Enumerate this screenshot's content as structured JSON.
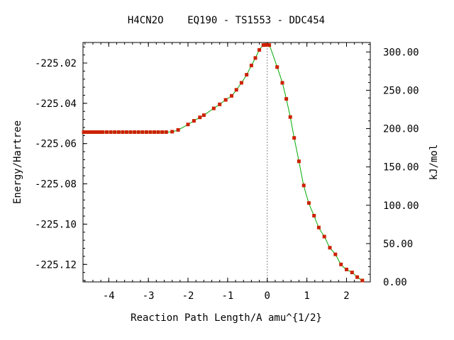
{
  "chart_data": {
    "type": "line",
    "title": "H4CN2O    EQ190 - TS1553 - DDC454",
    "xlabel": "Reaction Path Length/A amu^{1/2}",
    "ylabel": "Energy/Hartree",
    "y2label": "kJ/mol",
    "xlim": [
      -4.65,
      2.6
    ],
    "ylim": [
      -225.1287,
      -225.0098
    ],
    "y2lim": [
      0.0,
      312.3
    ],
    "grid": false,
    "legend": "none",
    "ts_marker_x": 0.0,
    "x_ticks": [
      {
        "value": -4,
        "label": "-4"
      },
      {
        "value": -3,
        "label": "-3"
      },
      {
        "value": -2,
        "label": "-2"
      },
      {
        "value": -1,
        "label": "-1"
      },
      {
        "value": 0,
        "label": "0"
      },
      {
        "value": 1,
        "label": "1"
      },
      {
        "value": 2,
        "label": "2"
      }
    ],
    "y_ticks": [
      {
        "value": -225.02,
        "label": "-225.02"
      },
      {
        "value": -225.04,
        "label": "-225.04"
      },
      {
        "value": -225.06,
        "label": "-225.06"
      },
      {
        "value": -225.08,
        "label": "-225.08"
      },
      {
        "value": -225.1,
        "label": "-225.10"
      },
      {
        "value": -225.12,
        "label": "-225.12"
      }
    ],
    "y2_ticks": [
      {
        "value": 0,
        "label": "0.00"
      },
      {
        "value": 50,
        "label": "50.00"
      },
      {
        "value": 100,
        "label": "100.00"
      },
      {
        "value": 150,
        "label": "150.00"
      },
      {
        "value": 200,
        "label": "200.00"
      },
      {
        "value": 250,
        "label": "250.00"
      },
      {
        "value": 300,
        "label": "300.00"
      }
    ],
    "series": [
      {
        "line_color": "#00aa00",
        "marker_color": "#cc2200",
        "x": [
          -4.63,
          -4.55,
          -4.47,
          -4.39,
          -4.31,
          -4.23,
          -4.15,
          -4.05,
          -3.95,
          -3.85,
          -3.75,
          -3.65,
          -3.55,
          -3.45,
          -3.35,
          -3.25,
          -3.15,
          -3.05,
          -2.95,
          -2.85,
          -2.75,
          -2.65,
          -2.55,
          -2.4,
          -2.25,
          -2.0,
          -1.85,
          -1.7,
          -1.6,
          -1.35,
          -1.2,
          -1.05,
          -0.9,
          -0.78,
          -0.65,
          -0.52,
          -0.4,
          -0.3,
          -0.2,
          -0.1,
          -0.05,
          0.0,
          0.05,
          0.25,
          0.38,
          0.48,
          0.58,
          0.68,
          0.8,
          0.92,
          1.05,
          1.18,
          1.3,
          1.44,
          1.58,
          1.72,
          1.86,
          2.0,
          2.14,
          2.27,
          2.4
        ],
        "y": [
          -225.0543,
          -225.0543,
          -225.0543,
          -225.0543,
          -225.0543,
          -225.0543,
          -225.0543,
          -225.0543,
          -225.0543,
          -225.0543,
          -225.0543,
          -225.0543,
          -225.0543,
          -225.0543,
          -225.0543,
          -225.0543,
          -225.0543,
          -225.0543,
          -225.0543,
          -225.0543,
          -225.0543,
          -225.0543,
          -225.0543,
          -225.0541,
          -225.0532,
          -225.0505,
          -225.0487,
          -225.047,
          -225.0459,
          -225.0425,
          -225.0405,
          -225.0383,
          -225.0363,
          -225.0333,
          -225.0298,
          -225.0258,
          -225.0212,
          -225.0175,
          -225.0135,
          -225.0111,
          -225.011,
          -225.011,
          -225.0111,
          -225.022,
          -225.0298,
          -225.0378,
          -225.0468,
          -225.0572,
          -225.0688,
          -225.0808,
          -225.0895,
          -225.0958,
          -225.1017,
          -225.1062,
          -225.1117,
          -225.115,
          -225.12,
          -225.1225,
          -225.124,
          -225.1263,
          -225.128
        ]
      }
    ]
  }
}
